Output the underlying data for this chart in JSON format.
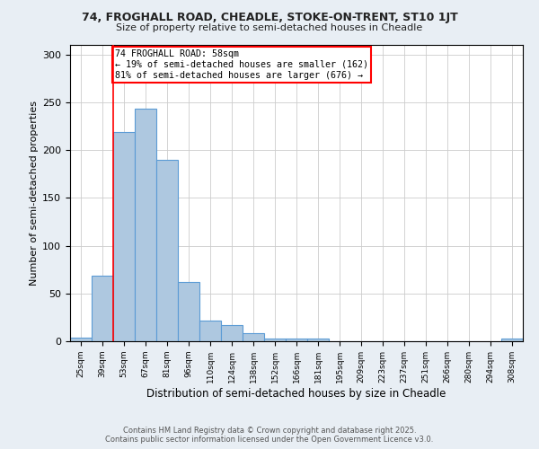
{
  "title1": "74, FROGHALL ROAD, CHEADLE, STOKE-ON-TRENT, ST10 1JT",
  "title2": "Size of property relative to semi-detached houses in Cheadle",
  "xlabel": "Distribution of semi-detached houses by size in Cheadle",
  "ylabel": "Number of semi-detached properties",
  "categories": [
    "25sqm",
    "39sqm",
    "53sqm",
    "67sqm",
    "81sqm",
    "96sqm",
    "110sqm",
    "124sqm",
    "138sqm",
    "152sqm",
    "166sqm",
    "181sqm",
    "195sqm",
    "209sqm",
    "223sqm",
    "237sqm",
    "251sqm",
    "266sqm",
    "280sqm",
    "294sqm",
    "308sqm"
  ],
  "values": [
    4,
    69,
    219,
    243,
    190,
    62,
    22,
    17,
    8,
    3,
    3,
    3,
    0,
    0,
    0,
    0,
    0,
    0,
    0,
    0,
    3
  ],
  "bar_color": "#aec8e0",
  "bar_edge_color": "#5b9bd5",
  "annotation_title": "74 FROGHALL ROAD: 58sqm",
  "annotation_line1": "← 19% of semi-detached houses are smaller (162)",
  "annotation_line2": "81% of semi-detached houses are larger (676) →",
  "footer1": "Contains HM Land Registry data © Crown copyright and database right 2025.",
  "footer2": "Contains public sector information licensed under the Open Government Licence v3.0.",
  "ylim": [
    0,
    310
  ],
  "yticks": [
    0,
    50,
    100,
    150,
    200,
    250,
    300
  ],
  "bg_color": "#e8eef4",
  "plot_bg_color": "#ffffff"
}
